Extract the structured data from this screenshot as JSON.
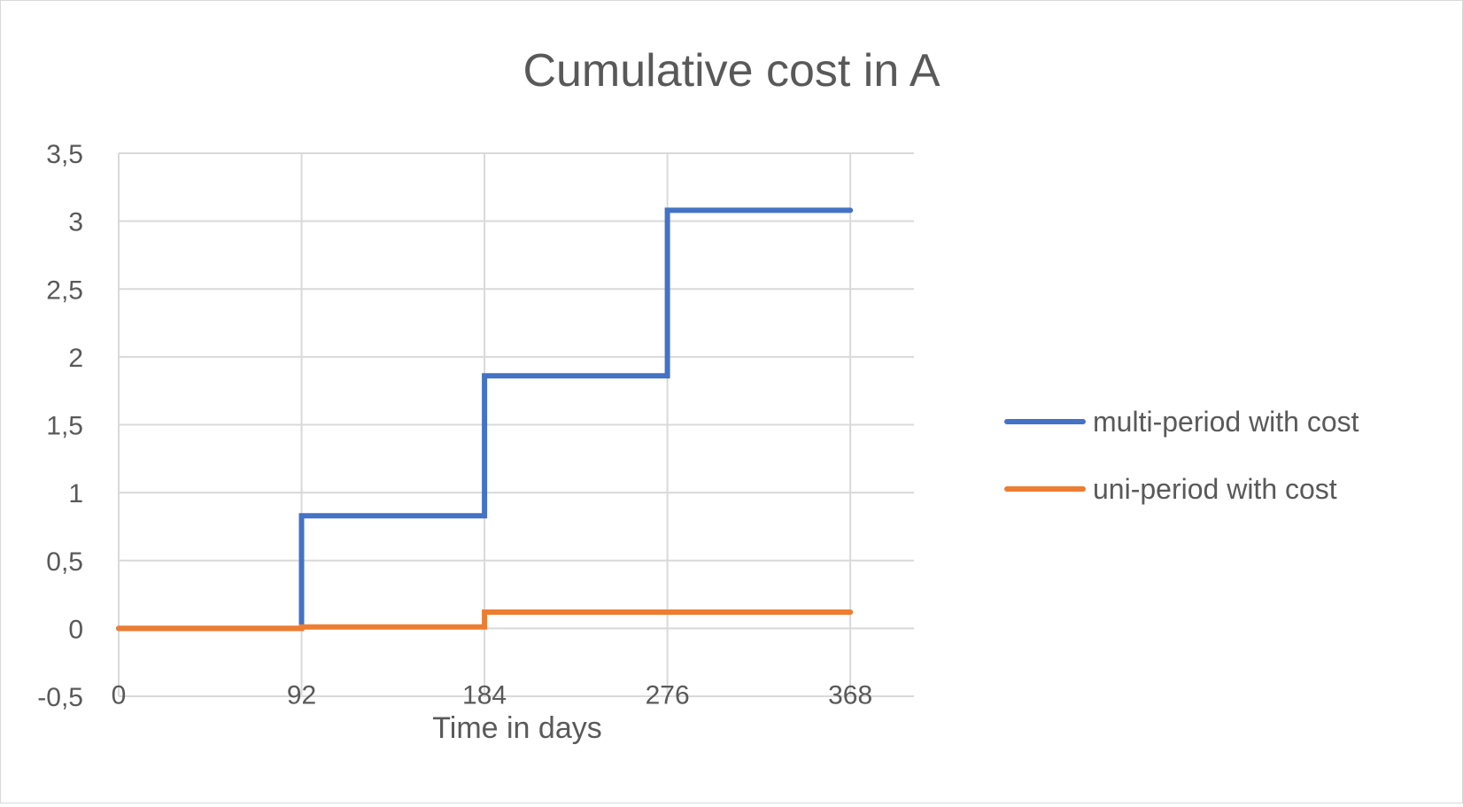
{
  "chart_data": {
    "type": "line",
    "step": true,
    "title": "Cumulative cost in A",
    "xlabel": "Time in days",
    "ylabel": "",
    "x_ticks": [
      0,
      92,
      184,
      276,
      368
    ],
    "y_ticks": [
      "-0,5",
      "0",
      "0,5",
      "1",
      "1,5",
      "2",
      "2,5",
      "3",
      "3,5"
    ],
    "xlim": [
      0,
      400
    ],
    "ylim": [
      -0.5,
      3.5
    ],
    "grid": true,
    "legend_position": "right",
    "series": [
      {
        "name": "multi-period with cost",
        "color": "#4472C4",
        "points": [
          [
            0,
            0
          ],
          [
            92,
            0
          ],
          [
            92,
            0.83
          ],
          [
            184,
            0.83
          ],
          [
            184,
            1.86
          ],
          [
            276,
            1.86
          ],
          [
            276,
            3.08
          ],
          [
            368,
            3.08
          ]
        ]
      },
      {
        "name": "uni-period with cost",
        "color": "#ED7D31",
        "points": [
          [
            0,
            0
          ],
          [
            92,
            0
          ],
          [
            92,
            0.01
          ],
          [
            184,
            0.01
          ],
          [
            184,
            0.12
          ],
          [
            276,
            0.12
          ],
          [
            368,
            0.12
          ]
        ]
      }
    ]
  }
}
